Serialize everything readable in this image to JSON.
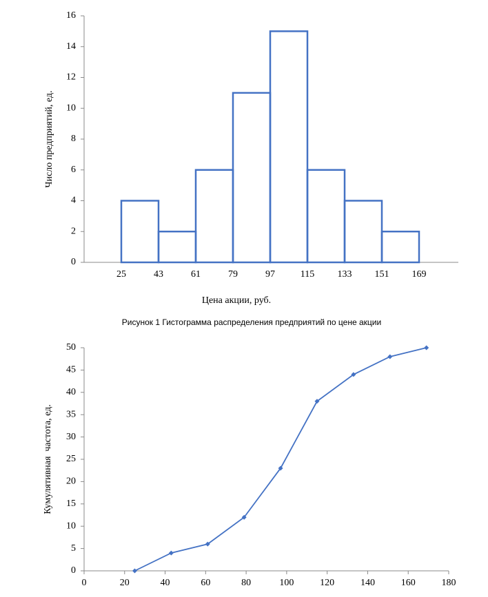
{
  "chart_data": [
    {
      "type": "histogram",
      "bins": [
        25,
        43,
        61,
        79,
        97,
        115,
        133,
        151,
        169
      ],
      "values": [
        4,
        2,
        6,
        11,
        15,
        6,
        4,
        2
      ],
      "color": "#4472c4",
      "xlim": [
        7,
        188
      ],
      "ylim": [
        0,
        16
      ],
      "yticks": [
        0,
        2,
        4,
        6,
        8,
        10,
        12,
        14,
        16
      ],
      "ylabel": "Число предприятий, ед.",
      "xlabel": "Цена акции, руб.",
      "caption": "Рисунок 1 Гистограмма распределения предприятий по цене акции"
    },
    {
      "type": "line",
      "x": [
        25,
        43,
        61,
        79,
        97,
        115,
        133,
        151,
        169
      ],
      "values": [
        0,
        4,
        6,
        12,
        23,
        38,
        44,
        48,
        50
      ],
      "color": "#4472c4",
      "xlim": [
        0,
        180
      ],
      "xticks": [
        0,
        20,
        40,
        60,
        80,
        100,
        120,
        140,
        160,
        180
      ],
      "ylim": [
        0,
        50
      ],
      "yticks": [
        0,
        5,
        10,
        15,
        20,
        25,
        30,
        35,
        40,
        45,
        50
      ],
      "ylabel": "Кумулятивная  частота, ед."
    }
  ]
}
